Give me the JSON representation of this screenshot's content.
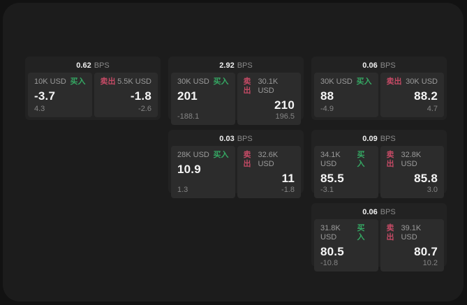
{
  "labels": {
    "buy": "买入",
    "sell": "卖出",
    "bps_unit": "BPS"
  },
  "colors": {
    "background": "#121212",
    "surface": "#1c1c1c",
    "card": "#222222",
    "panel": "#2c2c2c",
    "buy_green": "#35a863",
    "sell_red": "#c44a65",
    "text_primary": "#f5f5f5",
    "text_secondary": "#9b9b9b"
  },
  "cards": [
    {
      "bps": "0.62",
      "buy": {
        "amount": "10K USD",
        "price": "-3.7",
        "delta": "4.3"
      },
      "sell": {
        "amount": "5.5K USD",
        "price": "-1.8",
        "delta": "-2.6"
      }
    },
    {
      "bps": "2.92",
      "buy": {
        "amount": "30K USD",
        "price": "201",
        "delta": "-188.1"
      },
      "sell": {
        "amount": "30.1K USD",
        "price": "210",
        "delta": "196.5"
      }
    },
    {
      "bps": "0.06",
      "buy": {
        "amount": "30K USD",
        "price": "88",
        "delta": "-4.9"
      },
      "sell": {
        "amount": "30K USD",
        "price": "88.2",
        "delta": "4.7"
      }
    },
    {
      "bps": "0.03",
      "buy": {
        "amount": "28K USD",
        "price": "10.9",
        "delta": "1.3"
      },
      "sell": {
        "amount": "32.6K USD",
        "price": "11",
        "delta": "-1.8"
      }
    },
    {
      "bps": "0.09",
      "buy": {
        "amount": "34.1K USD",
        "price": "85.5",
        "delta": "-3.1"
      },
      "sell": {
        "amount": "32.8K USD",
        "price": "85.8",
        "delta": "3.0"
      }
    },
    {
      "bps": "0.06",
      "buy": {
        "amount": "31.8K USD",
        "price": "80.5",
        "delta": "-10.8"
      },
      "sell": {
        "amount": "39.1K USD",
        "price": "80.7",
        "delta": "10.2"
      }
    }
  ]
}
